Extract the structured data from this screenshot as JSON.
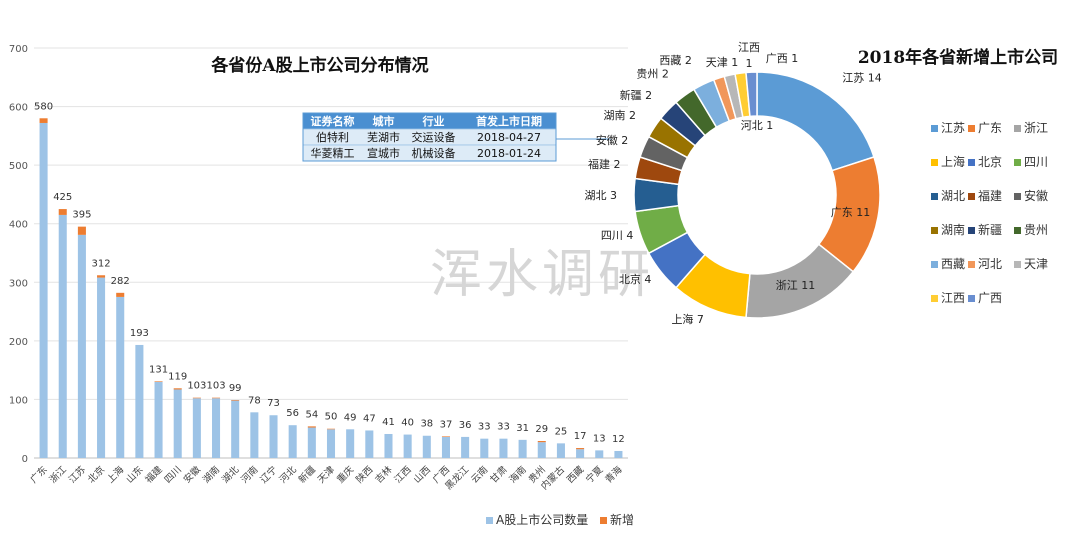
{
  "watermark": "浑水调研",
  "chart_data": [
    {
      "type": "bar",
      "stacked": true,
      "title": "各省份A股上市公司分布情况",
      "ylim": [
        0,
        700
      ],
      "yticks": [
        0,
        100,
        200,
        300,
        400,
        500,
        600,
        700
      ],
      "grid": true,
      "legend_position": "bottom",
      "categories": [
        "广东",
        "浙江",
        "江苏",
        "北京",
        "上海",
        "山东",
        "福建",
        "四川",
        "安徽",
        "湖南",
        "湖北",
        "河南",
        "辽宁",
        "河北",
        "新疆",
        "天津",
        "重庆",
        "陕西",
        "吉林",
        "江西",
        "山西",
        "广西",
        "黑龙江",
        "云南",
        "甘肃",
        "海南",
        "贵州",
        "内蒙古",
        "西藏",
        "宁夏",
        "青海"
      ],
      "data_labels": [
        580,
        425,
        395,
        312,
        282,
        193,
        131,
        119,
        103,
        103,
        99,
        78,
        73,
        56,
        54,
        50,
        49,
        47,
        41,
        40,
        38,
        37,
        36,
        33,
        33,
        31,
        29,
        25,
        17,
        13,
        12
      ],
      "series": [
        {
          "name": "A股上市公司数量",
          "color": "#9DC3E6",
          "values": [
            572,
            415,
            381,
            308,
            275,
            193,
            130,
            117,
            102,
            102,
            98,
            78,
            73,
            56,
            52,
            49,
            49,
            47,
            41,
            40,
            38,
            36,
            36,
            33,
            33,
            31,
            27,
            25,
            15,
            13,
            12
          ]
        },
        {
          "name": "新增",
          "color": "#ED7D31",
          "values": [
            8,
            10,
            14,
            4,
            7,
            0,
            1,
            2,
            1,
            1,
            1,
            0,
            0,
            0,
            2,
            1,
            0,
            0,
            0,
            0,
            0,
            1,
            0,
            0,
            0,
            0,
            2,
            0,
            2,
            0,
            0
          ]
        }
      ]
    },
    {
      "type": "pie",
      "donut": true,
      "title": "2018年各省新增上市公司",
      "legend_position": "right",
      "labels": [
        "江苏",
        "广东",
        "浙江",
        "上海",
        "北京",
        "四川",
        "湖北",
        "福建",
        "安徽",
        "湖南",
        "新疆",
        "贵州",
        "西藏",
        "河北",
        "天津",
        "江西",
        "广西"
      ],
      "values": [
        14,
        11,
        11,
        7,
        4,
        4,
        3,
        2,
        2,
        2,
        2,
        2,
        2,
        1,
        1,
        1,
        1
      ],
      "colors": [
        "#5B9BD5",
        "#ED7D31",
        "#A5A5A5",
        "#FFC000",
        "#4472C4",
        "#70AD47",
        "#255E91",
        "#9E480E",
        "#636363",
        "#997300",
        "#264478",
        "#43682B",
        "#7CAFDD",
        "#F1975A",
        "#B7B7B7",
        "#FFCD33",
        "#698ED0"
      ]
    }
  ],
  "table": {
    "headers": [
      "证券名称",
      "城市",
      "行业",
      "首发上市日期"
    ],
    "rows": [
      [
        "伯特利",
        "芜湖市",
        "交运设备",
        "2018-04-27"
      ],
      [
        "华菱精工",
        "宣城市",
        "机械设备",
        "2018-01-24"
      ]
    ],
    "header_color": "#4A8FD1",
    "row_color": "#DDEBF7"
  }
}
